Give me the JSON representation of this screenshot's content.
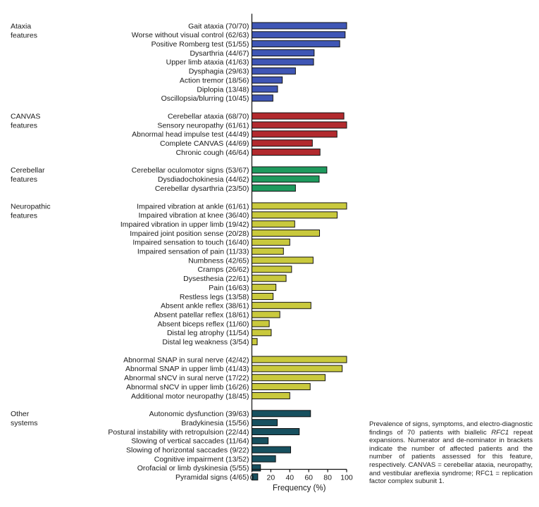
{
  "chart_data": {
    "type": "bar",
    "orientation": "horizontal",
    "xlabel": "Frequency (%)",
    "xlim": [
      0,
      100
    ],
    "xticks": [
      "0",
      "20",
      "40",
      "60",
      "80",
      "100"
    ],
    "groups": [
      {
        "name": "Ataxia features",
        "label_lines": [
          "Ataxia",
          "features"
        ],
        "color": "#3f56b5",
        "items": [
          {
            "label": "Gait ataxia (70/70)",
            "value": 100
          },
          {
            "label": "Worse without visual control (62/63)",
            "value": 98.4
          },
          {
            "label": "Positive Romberg test (51/55)",
            "value": 92.7
          },
          {
            "label": "Dysarthria (44/67)",
            "value": 65.7
          },
          {
            "label": "Upper limb ataxia (41/63)",
            "value": 65.1
          },
          {
            "label": "Dysphagia (29/63)",
            "value": 46.0
          },
          {
            "label": "Action tremor (18/56)",
            "value": 32.1
          },
          {
            "label": "Diplopia (13/48)",
            "value": 27.1
          },
          {
            "label": "Oscillopsia/blurring (10/45)",
            "value": 22.2
          }
        ]
      },
      {
        "name": "CANVAS features",
        "label_lines": [
          "CANVAS",
          "features"
        ],
        "color": "#b22a2e",
        "items": [
          {
            "label": "Cerebellar ataxia (68/70)",
            "value": 97.1
          },
          {
            "label": "Sensory neuropathy (61/61)",
            "value": 100
          },
          {
            "label": "Abnormal head impulse test (44/49)",
            "value": 89.8
          },
          {
            "label": "Complete CANVAS (44/69)",
            "value": 63.8
          },
          {
            "label": "Chronic cough (46/64)",
            "value": 71.9
          }
        ]
      },
      {
        "name": "Cerebellar features",
        "label_lines": [
          "Cerebellar",
          "features"
        ],
        "color": "#1e9a5e",
        "items": [
          {
            "label": "Cerebellar oculomotor signs (53/67)",
            "value": 79.1
          },
          {
            "label": "Dysdiadochokinesia (44/62)",
            "value": 71.0
          },
          {
            "label": "Cerebellar dysarthria (23/50)",
            "value": 46.0
          }
        ]
      },
      {
        "name": "Neuropathic features",
        "label_lines": [
          "Neuropathic",
          "features"
        ],
        "color": "#c9c93d",
        "items": [
          {
            "label": "Impaired vibration at ankle (61/61)",
            "value": 100
          },
          {
            "label": "Impaired vibration at knee (36/40)",
            "value": 90.0
          },
          {
            "label": "Impaired vibration in upper limb (19/42)",
            "value": 45.2
          },
          {
            "label": "Impaired joint position sense (20/28)",
            "value": 71.4
          },
          {
            "label": "Impaired sensation to touch (16/40)",
            "value": 40.0
          },
          {
            "label": "Impaired sensation of pain (11/33)",
            "value": 33.3
          },
          {
            "label": "Numbness (42/65)",
            "value": 64.6
          },
          {
            "label": "Cramps (26/62)",
            "value": 41.9
          },
          {
            "label": "Dysesthesia (22/61)",
            "value": 36.1
          },
          {
            "label": "Pain (16/63)",
            "value": 25.4
          },
          {
            "label": "Restless legs (13/58)",
            "value": 22.4
          },
          {
            "label": "Absent ankle reflex (38/61)",
            "value": 62.3
          },
          {
            "label": "Absent patellar reflex (18/61)",
            "value": 29.5
          },
          {
            "label": "Absent biceps reflex (11/60)",
            "value": 18.3
          },
          {
            "label": "Distal leg atrophy (11/54)",
            "value": 20.4
          },
          {
            "label": "Distal leg weakness (3/54)",
            "value": 5.6
          }
        ]
      },
      {
        "name": "",
        "label_lines": [],
        "color": "#c9c93d",
        "items": [
          {
            "label": "Abnormal SNAP in sural nerve (42/42)",
            "value": 100
          },
          {
            "label": "Abnormal SNAP in upper limb (41/43)",
            "value": 95.3
          },
          {
            "label": "Abnormal sNCV in sural nerve (17/22)",
            "value": 77.3
          },
          {
            "label": "Abnormal sNCV in upper limb (16/26)",
            "value": 61.5
          },
          {
            "label": "Additional motor neuropathy (18/45)",
            "value": 40.0
          }
        ]
      },
      {
        "name": "Other systems",
        "label_lines": [
          "Other",
          "systems"
        ],
        "color": "#17505f",
        "items": [
          {
            "label": "Autonomic dysfunction (39/63)",
            "value": 61.9
          },
          {
            "label": "Bradykinesia (15/56)",
            "value": 26.8
          },
          {
            "label": "Postural instability with retropulsion (22/44)",
            "value": 50.0
          },
          {
            "label": "Slowing of vertical saccades (11/64)",
            "value": 17.2
          },
          {
            "label": "Slowing of horizontal saccades (9/22)",
            "value": 40.9
          },
          {
            "label": "Cognitive impairment (13/52)",
            "value": 25.0
          },
          {
            "label": "Orofacial or limb dyskinesia (5/55)",
            "value": 9.1
          },
          {
            "label": "Pyramidal signs (4/65)",
            "value": 6.2
          }
        ]
      }
    ]
  },
  "caption": {
    "part1": "Prevalence of signs, symptoms, and electro-diagnostic findings of 70 patients with biallelic ",
    "gene": "RFC1",
    "part2": " repeat expansions. Numerator and de-nominator in brackets indicate the number of affected patients and the number of patients assessed for this feature, respectively. CANVAS = cerebellar ataxia, neuropathy, and vestibular areflexia syndrome; RFC1 = replication factor complex subunit 1."
  }
}
